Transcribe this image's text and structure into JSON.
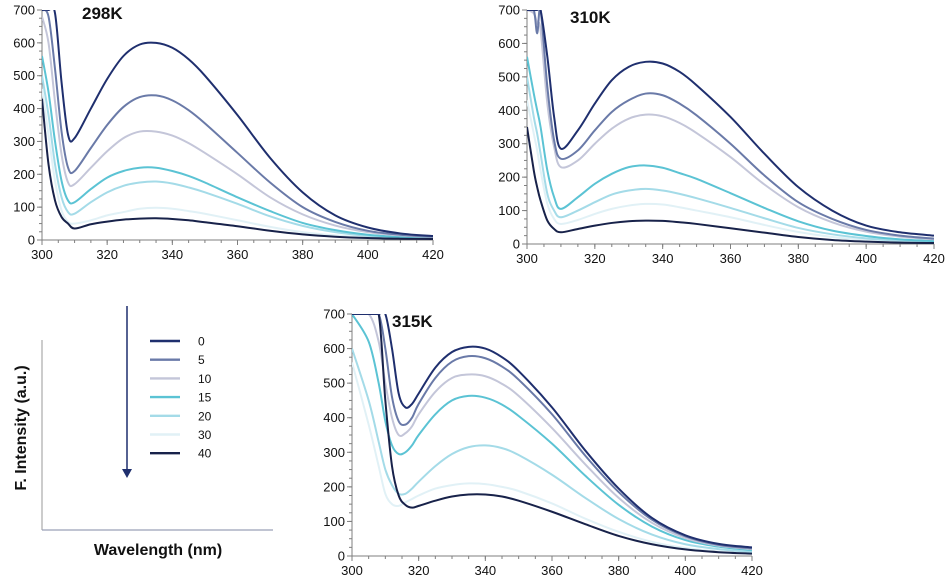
{
  "figure": {
    "legend_title": "",
    "ylabel": "F. Intensity (a.u.)",
    "xlabel": "Wavelength (nm)"
  },
  "series_names": [
    "0",
    "5",
    "10",
    "15",
    "20",
    "30",
    "40"
  ],
  "series_colors": [
    "#1f2f6e",
    "#6a7aa8",
    "#c4c6d9",
    "#5bc3d4",
    "#a4dbe8",
    "#e1f1f6",
    "#18224a"
  ],
  "chart_data": [
    {
      "type": "line",
      "title": "298K",
      "xlim": [
        300,
        420
      ],
      "ylim": [
        0,
        700
      ],
      "xticks": [
        300,
        320,
        340,
        360,
        380,
        400,
        420
      ],
      "yticks": [
        0,
        100,
        200,
        300,
        400,
        500,
        600,
        700
      ],
      "x": [
        300,
        302,
        304,
        306,
        308,
        310,
        315,
        320,
        325,
        330,
        335,
        340,
        345,
        350,
        360,
        370,
        380,
        390,
        400,
        410,
        420
      ],
      "series": [
        {
          "name": "0",
          "values": [
            700,
            700,
            690,
            480,
            320,
            310,
            400,
            490,
            560,
            595,
            600,
            585,
            550,
            500,
            380,
            250,
            145,
            75,
            38,
            20,
            12
          ]
        },
        {
          "name": "5",
          "values": [
            700,
            680,
            520,
            330,
            220,
            210,
            280,
            350,
            405,
            435,
            440,
            425,
            395,
            355,
            265,
            175,
            100,
            55,
            28,
            16,
            10
          ]
        },
        {
          "name": "10",
          "values": [
            680,
            600,
            420,
            260,
            175,
            170,
            220,
            270,
            310,
            330,
            330,
            318,
            295,
            265,
            200,
            130,
            78,
            44,
            24,
            14,
            9
          ]
        },
        {
          "name": "15",
          "values": [
            560,
            450,
            300,
            180,
            120,
            115,
            155,
            190,
            210,
            220,
            220,
            210,
            195,
            175,
            130,
            88,
            52,
            30,
            16,
            9,
            6
          ]
        },
        {
          "name": "20",
          "values": [
            500,
            380,
            230,
            130,
            85,
            80,
            115,
            145,
            165,
            175,
            178,
            172,
            160,
            145,
            110,
            72,
            43,
            24,
            13,
            8,
            5
          ]
        },
        {
          "name": "30",
          "values": [
            460,
            320,
            180,
            90,
            55,
            50,
            60,
            75,
            85,
            95,
            98,
            95,
            88,
            80,
            60,
            40,
            24,
            14,
            8,
            5,
            3
          ]
        },
        {
          "name": "40",
          "values": [
            430,
            230,
            120,
            70,
            50,
            35,
            48,
            56,
            62,
            65,
            66,
            64,
            60,
            54,
            42,
            28,
            17,
            10,
            6,
            4,
            3
          ]
        }
      ]
    },
    {
      "type": "line",
      "title": "310K",
      "xlim": [
        300,
        420
      ],
      "ylim": [
        0,
        700
      ],
      "xticks": [
        300,
        320,
        340,
        360,
        380,
        400,
        420
      ],
      "yticks": [
        0,
        100,
        200,
        300,
        400,
        500,
        600,
        700
      ],
      "x": [
        300,
        302,
        303,
        304,
        306,
        308,
        310,
        315,
        320,
        325,
        330,
        335,
        340,
        345,
        350,
        360,
        370,
        380,
        390,
        400,
        410,
        420
      ],
      "series": [
        {
          "name": "0",
          "values": [
            700,
            700,
            700,
            700,
            560,
            380,
            285,
            340,
            420,
            490,
            530,
            545,
            540,
            515,
            475,
            380,
            270,
            170,
            100,
            55,
            35,
            25
          ]
        },
        {
          "name": "5",
          "values": [
            700,
            700,
            630,
            700,
            470,
            310,
            255,
            280,
            340,
            395,
            430,
            450,
            445,
            420,
            385,
            300,
            205,
            125,
            75,
            42,
            25,
            16
          ]
        },
        {
          "name": "10",
          "values": [
            700,
            690,
            660,
            640,
            420,
            290,
            230,
            250,
            300,
            345,
            375,
            387,
            382,
            362,
            332,
            260,
            178,
            110,
            65,
            37,
            22,
            14
          ]
        },
        {
          "name": "15",
          "values": [
            560,
            450,
            400,
            350,
            220,
            140,
            105,
            140,
            180,
            210,
            230,
            235,
            228,
            212,
            195,
            152,
            108,
            68,
            40,
            24,
            14,
            9
          ]
        },
        {
          "name": "20",
          "values": [
            500,
            380,
            330,
            270,
            150,
            100,
            80,
            100,
            125,
            148,
            160,
            165,
            160,
            150,
            137,
            108,
            77,
            48,
            29,
            17,
            10,
            6
          ]
        },
        {
          "name": "30",
          "values": [
            430,
            330,
            280,
            220,
            120,
            75,
            60,
            72,
            90,
            105,
            115,
            120,
            118,
            110,
            100,
            80,
            57,
            36,
            21,
            12,
            7,
            4
          ]
        },
        {
          "name": "40",
          "values": [
            350,
            220,
            170,
            130,
            70,
            45,
            35,
            45,
            55,
            63,
            68,
            70,
            69,
            65,
            60,
            47,
            34,
            21,
            12,
            7,
            4,
            3
          ]
        }
      ]
    },
    {
      "type": "line",
      "title": "315K",
      "xlim": [
        300,
        420
      ],
      "ylim": [
        0,
        700
      ],
      "xticks": [
        300,
        320,
        340,
        360,
        380,
        400,
        420
      ],
      "yticks": [
        0,
        100,
        200,
        300,
        400,
        500,
        600,
        700
      ],
      "x": [
        300,
        305,
        308,
        310,
        312,
        314,
        316,
        318,
        320,
        325,
        330,
        335,
        340,
        345,
        350,
        360,
        370,
        380,
        390,
        400,
        410,
        420
      ],
      "series": [
        {
          "name": "0",
          "values": [
            700,
            700,
            700,
            700,
            600,
            470,
            430,
            440,
            470,
            545,
            590,
            605,
            600,
            575,
            535,
            430,
            305,
            195,
            110,
            60,
            35,
            25
          ]
        },
        {
          "name": "5",
          "values": [
            700,
            700,
            700,
            600,
            460,
            390,
            380,
            400,
            440,
            515,
            562,
            578,
            572,
            548,
            510,
            410,
            290,
            185,
            105,
            57,
            32,
            22
          ]
        },
        {
          "name": "10",
          "values": [
            700,
            700,
            620,
            500,
            400,
            350,
            355,
            375,
            410,
            475,
            515,
            525,
            520,
            498,
            463,
            370,
            265,
            168,
            96,
            52,
            30,
            20
          ]
        },
        {
          "name": "15",
          "values": [
            700,
            620,
            500,
            390,
            320,
            295,
            300,
            320,
            350,
            410,
            450,
            463,
            458,
            438,
            405,
            325,
            232,
            148,
            85,
            46,
            27,
            17
          ]
        },
        {
          "name": "20",
          "values": [
            600,
            450,
            330,
            250,
            205,
            180,
            180,
            195,
            215,
            260,
            295,
            315,
            320,
            312,
            292,
            235,
            168,
            107,
            62,
            34,
            20,
            12
          ]
        },
        {
          "name": "30",
          "values": [
            560,
            380,
            260,
            180,
            150,
            145,
            155,
            165,
            175,
            195,
            205,
            210,
            208,
            200,
            188,
            152,
            108,
            70,
            41,
            23,
            13,
            8
          ]
        },
        {
          "name": "40",
          "values": [
            700,
            700,
            700,
            450,
            260,
            175,
            148,
            140,
            145,
            160,
            172,
            178,
            178,
            172,
            160,
            128,
            92,
            58,
            34,
            19,
            11,
            7
          ]
        }
      ]
    }
  ]
}
